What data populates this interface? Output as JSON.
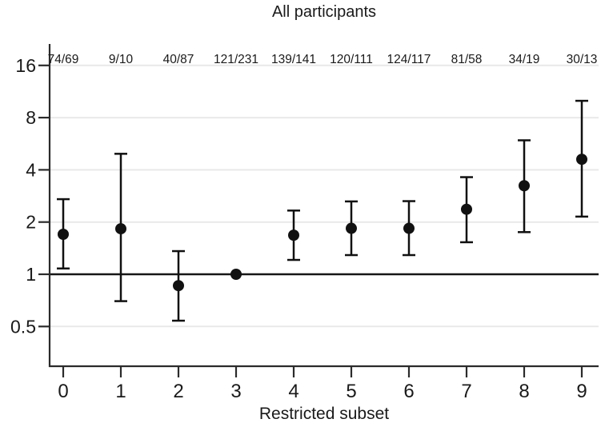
{
  "chart_data": {
    "type": "scatter",
    "title": "All participants",
    "xlabel": "Restricted subset",
    "ylabel": "",
    "yscale": "log2",
    "yticks": [
      16,
      8,
      4,
      2,
      1,
      0.5
    ],
    "ytick_labels": [
      "16",
      "8",
      "4",
      "2",
      "1",
      "0.5"
    ],
    "ylim": [
      0.33,
      21
    ],
    "reference_line": 1,
    "grid": true,
    "legend": "none",
    "x": [
      0,
      1,
      2,
      3,
      4,
      5,
      6,
      7,
      8,
      9
    ],
    "xtick_labels": [
      "0",
      "1",
      "2",
      "3",
      "4",
      "5",
      "6",
      "7",
      "8",
      "9"
    ],
    "count_labels": [
      "74/69",
      "9/10",
      "40/87",
      "121/231",
      "139/141",
      "120/111",
      "124/117",
      "81/58",
      "34/19",
      "30/13"
    ],
    "series": [
      {
        "name": "estimate-with-95ci",
        "values": [
          1.7,
          1.83,
          0.86,
          1.0,
          1.68,
          1.84,
          1.84,
          2.37,
          3.24,
          4.6
        ],
        "ci_low": [
          1.08,
          0.7,
          0.54,
          null,
          1.21,
          1.29,
          1.29,
          1.53,
          1.75,
          2.15
        ],
        "ci_high": [
          2.71,
          4.95,
          1.36,
          null,
          2.33,
          2.63,
          2.64,
          3.63,
          5.92,
          10.0
        ]
      }
    ],
    "colors": {
      "point": "#111111",
      "error_bar": "#111111",
      "reference_line": "#161616",
      "grid": "#e9e9e9",
      "axis": "#2b2b2b",
      "text": "#1a1a1a"
    }
  }
}
